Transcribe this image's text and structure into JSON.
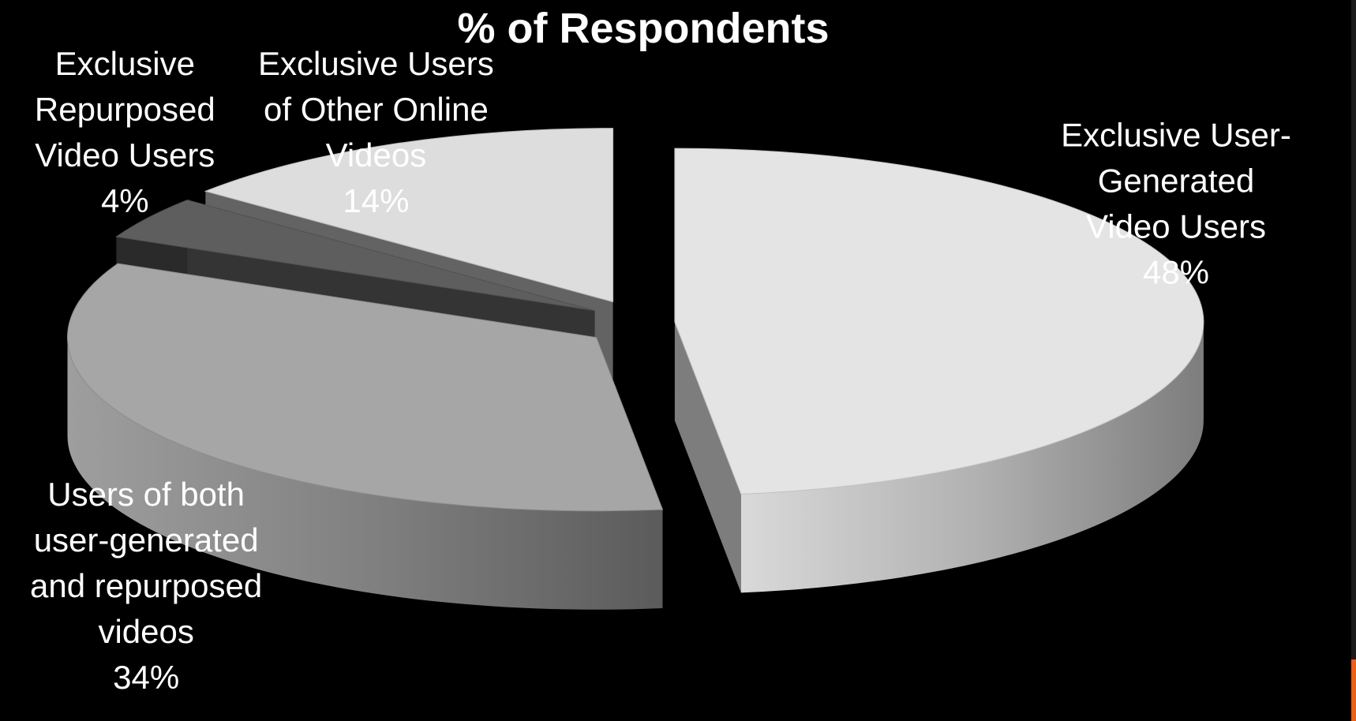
{
  "chart_data": {
    "type": "pie",
    "style": "3d-exploded",
    "title": "% of Respondents",
    "slices": [
      {
        "lines": [
          "Exclusive User-",
          "Generated",
          "Video Users"
        ],
        "value_label": "48%",
        "value": 48,
        "color": "#e4e4e4"
      },
      {
        "lines": [
          "Users of both",
          "user-generated",
          "and repurposed",
          "videos"
        ],
        "value_label": "34%",
        "value": 34,
        "color": "#a6a6a6"
      },
      {
        "lines": [
          "Exclusive",
          "Repurposed",
          "Video Users"
        ],
        "value_label": "4%",
        "value": 4,
        "color": "#5e5e5e"
      },
      {
        "lines": [
          "Exclusive Users",
          "of Other Online",
          "Videos"
        ],
        "value_label": "14%",
        "value": 14,
        "color": "#dddddd"
      }
    ],
    "legend": "none"
  },
  "colors": {
    "background": "#000000",
    "text": "#ffffff",
    "accent": "#e8601c"
  }
}
